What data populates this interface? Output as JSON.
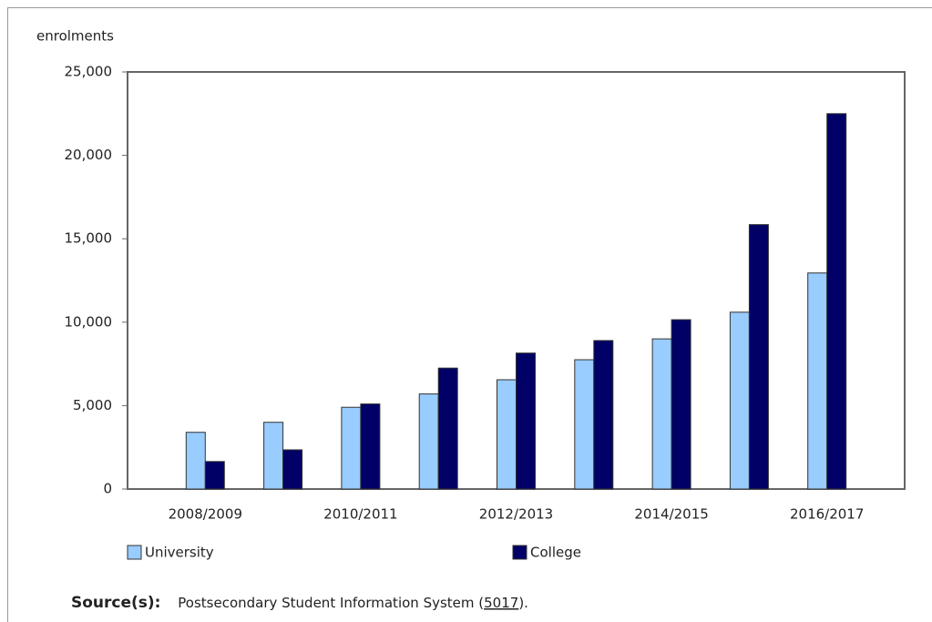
{
  "chart_data": {
    "type": "bar",
    "y_axis_label": "enrolments",
    "categories": [
      "2008/2009",
      null,
      "2010/2011",
      null,
      "2012/2013",
      null,
      "2014/2015",
      null,
      "2016/2017"
    ],
    "series": [
      {
        "name": "University",
        "color": "#99ccff",
        "values": [
          3400,
          4000,
          4900,
          5700,
          6550,
          7750,
          9000,
          10600,
          12950
        ]
      },
      {
        "name": "College",
        "color": "#000066",
        "values": [
          1650,
          2350,
          5100,
          7250,
          8150,
          8900,
          10150,
          15850,
          22500
        ]
      }
    ],
    "ylim": [
      0,
      25000
    ],
    "yticks": [
      0,
      {
        "value": 5000,
        "label": "5,000"
      },
      {
        "value": 10000,
        "label": "10,000"
      },
      {
        "value": 15000,
        "label": "15,000"
      },
      {
        "value": 20000,
        "label": "20,000"
      },
      {
        "value": 25000,
        "label": "25,000"
      }
    ],
    "grid": false,
    "source": {
      "label": "Source(s):",
      "text_before": "Postsecondary Student Information System (",
      "link": "5017",
      "text_after": ")."
    }
  }
}
